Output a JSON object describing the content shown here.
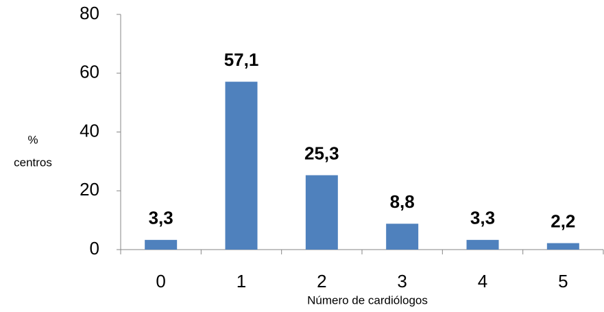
{
  "chart_data": {
    "type": "bar",
    "categories": [
      "0",
      "1",
      "2",
      "3",
      "4",
      "5"
    ],
    "values": [
      3.3,
      57.1,
      25.3,
      8.8,
      3.3,
      2.2
    ],
    "value_labels": [
      "3,3",
      "57,1",
      "25,3",
      "8,8",
      "3,3",
      "2,2"
    ],
    "color": "#4f81bd",
    "ylim": [
      0,
      80
    ],
    "yticks": [
      0,
      20,
      40,
      60,
      80
    ],
    "x_label": "Número de cardiólogos",
    "y_label": [
      "%",
      "centros"
    ],
    "grid": false
  }
}
